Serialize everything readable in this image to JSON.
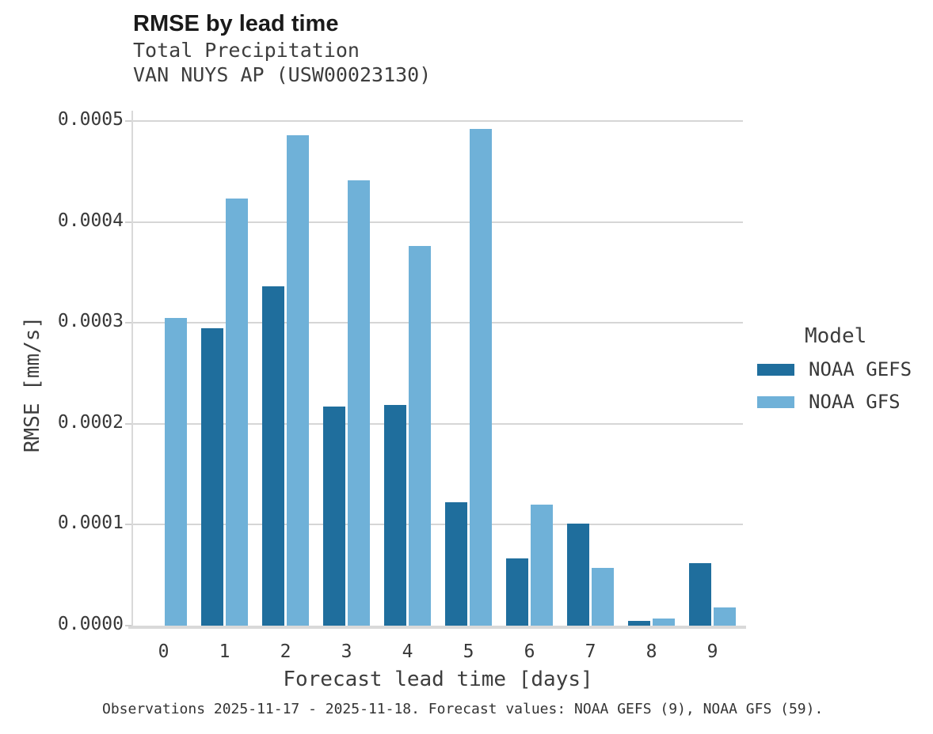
{
  "header": {
    "title": "RMSE by lead time",
    "subtitle1": "Total Precipitation",
    "subtitle2": "VAN NUYS AP (USW00023130)"
  },
  "chart_data": {
    "type": "bar",
    "title": "RMSE by lead time",
    "subtitle": [
      "Total Precipitation",
      "VAN NUYS AP (USW00023130)"
    ],
    "xlabel": "Forecast lead time [days]",
    "ylabel": "RMSE [mm/s]",
    "categories": [
      "0",
      "1",
      "2",
      "3",
      "4",
      "5",
      "6",
      "7",
      "8",
      "9"
    ],
    "series": [
      {
        "name": "NOAA GEFS",
        "color": "#1f6e9d",
        "values": [
          null,
          0.000295,
          0.000336,
          0.000217,
          0.000219,
          0.000122,
          6.7e-05,
          0.000101,
          5e-06,
          6.2e-05
        ]
      },
      {
        "name": "NOAA GFS",
        "color": "#6fb1d8",
        "values": [
          0.000305,
          0.000423,
          0.000486,
          0.000441,
          0.000376,
          0.000492,
          0.00012,
          5.7e-05,
          7e-06,
          1.8e-05
        ]
      }
    ],
    "ylim": [
      0,
      0.00051
    ],
    "yticks": [
      0,
      0.0001,
      0.0002,
      0.0003,
      0.0004,
      0.0005
    ],
    "ytick_labels": [
      "0.0000",
      "0.0001",
      "0.0002",
      "0.0003",
      "0.0004",
      "0.0005"
    ],
    "grid": "horizontal",
    "legend_title": "Model",
    "legend_position": "right"
  },
  "footer": {
    "caption": "Observations 2025-11-17 - 2025-11-18. Forecast values: NOAA GEFS (9), NOAA GFS (59)."
  },
  "colors": {
    "gefs_bar": "#1f6e9d",
    "gfs_bar": "#6fb1d8",
    "gridline": "#d6d6d6",
    "axis": "#d9d9d9"
  }
}
